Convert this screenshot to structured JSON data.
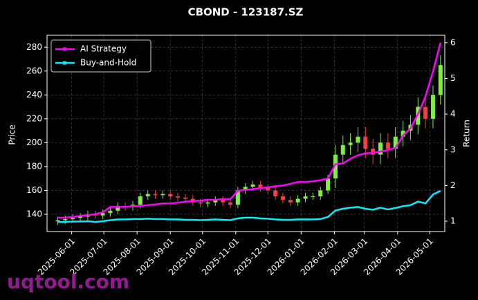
{
  "chart_data": {
    "type": "candlestick",
    "title": "CBOND - 123187.SZ",
    "ylabel": "Price",
    "y2label": "Return",
    "watermark": "uqtool.com",
    "x": [
      "2025-05-19",
      "2025-05-26",
      "2025-06-02",
      "2025-06-09",
      "2025-06-16",
      "2025-06-23",
      "2025-06-30",
      "2025-07-07",
      "2025-07-14",
      "2025-07-21",
      "2025-07-28",
      "2025-08-04",
      "2025-08-11",
      "2025-08-18",
      "2025-08-25",
      "2025-09-01",
      "2025-09-08",
      "2025-09-15",
      "2025-09-22",
      "2025-09-29",
      "2025-10-06",
      "2025-10-13",
      "2025-10-20",
      "2025-10-27",
      "2025-11-03",
      "2025-11-10",
      "2025-11-17",
      "2025-11-24",
      "2025-12-01",
      "2025-12-08",
      "2025-12-15",
      "2025-12-22",
      "2025-12-29",
      "2026-01-05",
      "2026-01-12",
      "2026-01-19",
      "2026-01-26",
      "2026-02-02",
      "2026-02-09",
      "2026-02-16",
      "2026-02-23",
      "2026-03-02",
      "2026-03-09",
      "2026-03-16",
      "2026-03-23",
      "2026-03-30",
      "2026-04-06",
      "2026-04-13",
      "2026-04-20",
      "2026-04-27",
      "2026-05-04",
      "2026-05-11"
    ],
    "open": [
      134,
      135,
      136,
      137,
      138,
      140,
      139,
      141,
      143,
      147,
      146,
      148,
      155,
      157,
      156,
      157,
      155,
      154,
      153,
      150,
      149,
      150,
      152,
      150,
      148,
      160,
      163,
      165,
      162,
      160,
      155,
      152,
      150,
      153,
      155,
      155,
      160,
      170,
      190,
      198,
      200,
      205,
      195,
      190,
      200,
      195,
      205,
      210,
      215,
      230,
      220,
      240
    ],
    "high": [
      138,
      139,
      140,
      141,
      143,
      143,
      144,
      146,
      150,
      150,
      151,
      158,
      160,
      160,
      160,
      160,
      158,
      157,
      156,
      153,
      153,
      155,
      155,
      153,
      163,
      166,
      168,
      168,
      165,
      163,
      158,
      155,
      156,
      158,
      158,
      163,
      173,
      198,
      206,
      208,
      213,
      213,
      203,
      208,
      208,
      213,
      218,
      223,
      238,
      238,
      248,
      273
    ],
    "low": [
      131,
      132,
      133,
      134,
      135,
      136,
      136,
      138,
      140,
      143,
      143,
      145,
      152,
      153,
      153,
      152,
      151,
      150,
      147,
      146,
      146,
      147,
      147,
      145,
      145,
      157,
      160,
      159,
      157,
      152,
      149,
      147,
      147,
      150,
      152,
      152,
      157,
      162,
      182,
      190,
      192,
      187,
      182,
      182,
      187,
      187,
      197,
      202,
      207,
      212,
      212,
      232
    ],
    "close": [
      135,
      136,
      137,
      138,
      140,
      139,
      141,
      143,
      147,
      146,
      148,
      155,
      157,
      156,
      157,
      155,
      154,
      153,
      150,
      149,
      150,
      152,
      150,
      148,
      160,
      163,
      165,
      162,
      160,
      155,
      152,
      150,
      153,
      155,
      155,
      160,
      170,
      190,
      198,
      200,
      205,
      195,
      190,
      200,
      195,
      205,
      210,
      215,
      230,
      220,
      240,
      265
    ],
    "up_color": "#7cf03c",
    "down_color": "#f04040",
    "series": [
      {
        "name": "AI Strategy",
        "color": "#ff00ff",
        "axis": "y2",
        "values": [
          1.1,
          1.1,
          1.12,
          1.15,
          1.17,
          1.2,
          1.25,
          1.4,
          1.4,
          1.4,
          1.42,
          1.43,
          1.45,
          1.47,
          1.5,
          1.5,
          1.52,
          1.55,
          1.56,
          1.58,
          1.6,
          1.6,
          1.62,
          1.62,
          1.85,
          1.88,
          1.9,
          1.93,
          1.95,
          1.98,
          2.0,
          2.05,
          2.1,
          2.1,
          2.12,
          2.15,
          2.2,
          2.6,
          2.62,
          2.75,
          2.85,
          2.9,
          2.92,
          2.95,
          3.0,
          3.05,
          3.4,
          3.6,
          4.0,
          4.5,
          5.2,
          6.0
        ]
      },
      {
        "name": "Buy-and-Hold",
        "color": "#00f0ff",
        "axis": "y2",
        "values": [
          0.98,
          0.98,
          0.99,
          0.99,
          1.0,
          0.98,
          1.0,
          1.03,
          1.05,
          1.05,
          1.06,
          1.06,
          1.07,
          1.06,
          1.06,
          1.05,
          1.05,
          1.04,
          1.04,
          1.03,
          1.04,
          1.05,
          1.04,
          1.03,
          1.08,
          1.1,
          1.1,
          1.08,
          1.07,
          1.05,
          1.04,
          1.04,
          1.05,
          1.05,
          1.05,
          1.06,
          1.12,
          1.3,
          1.35,
          1.38,
          1.4,
          1.35,
          1.32,
          1.38,
          1.33,
          1.37,
          1.42,
          1.45,
          1.55,
          1.5,
          1.75,
          1.85
        ]
      }
    ],
    "xlim": [
      "2025-05-09",
      "2026-05-15"
    ],
    "xticks": [
      "2025-06-01",
      "2025-07-01",
      "2025-08-01",
      "2025-09-01",
      "2025-10-01",
      "2025-11-01",
      "2025-12-01",
      "2026-01-01",
      "2026-02-01",
      "2026-03-01",
      "2026-04-01",
      "2026-05-01"
    ],
    "ylim": [
      125.5,
      290
    ],
    "yticks": [
      140,
      160,
      180,
      200,
      220,
      240,
      260,
      280
    ],
    "y2lim": [
      0.71,
      6.21
    ],
    "y2ticks": [
      1,
      2,
      3,
      4,
      5,
      6
    ],
    "grid": true,
    "legend": "upper left"
  }
}
